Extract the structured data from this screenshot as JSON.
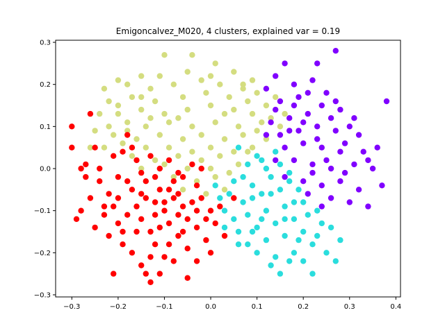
{
  "chart_data": {
    "type": "scatter",
    "title": "Emigoncalvez_M020, 4 clusters, explained var = 0.19",
    "xlabel": "",
    "ylabel": "",
    "xlim": [
      -0.335,
      0.41
    ],
    "ylim": [
      -0.305,
      0.305
    ],
    "x_ticks": [
      -0.3,
      -0.2,
      -0.1,
      0.0,
      0.1,
      0.2,
      0.3,
      0.4
    ],
    "x_tick_labels": [
      "−0.3",
      "−0.2",
      "−0.1",
      "0.0",
      "0.1",
      "0.2",
      "0.3",
      "0.4"
    ],
    "y_ticks": [
      -0.3,
      -0.2,
      -0.1,
      0.0,
      0.1,
      0.2,
      0.3
    ],
    "y_tick_labels": [
      "−0.3",
      "−0.2",
      "−0.1",
      "0.0",
      "0.1",
      "0.2",
      "0.3"
    ],
    "grid": false,
    "legend": "none",
    "series": [
      {
        "color": "#d4dd80",
        "points": [
          [
            -0.2,
            0.21
          ],
          [
            -0.15,
            0.22
          ],
          [
            -0.1,
            0.27
          ],
          [
            -0.04,
            0.27
          ],
          [
            0.01,
            0.25
          ],
          [
            0.05,
            0.23
          ],
          [
            -0.23,
            0.19
          ],
          [
            -0.18,
            0.2
          ],
          [
            -0.13,
            0.19
          ],
          [
            -0.08,
            0.2
          ],
          [
            -0.02,
            0.21
          ],
          [
            0.02,
            0.2
          ],
          [
            0.07,
            0.19
          ],
          [
            0.1,
            0.18
          ],
          [
            -0.22,
            0.16
          ],
          [
            -0.17,
            0.17
          ],
          [
            -0.12,
            0.16
          ],
          [
            -0.06,
            0.17
          ],
          [
            -0.01,
            0.18
          ],
          [
            0.04,
            0.17
          ],
          [
            0.08,
            0.16
          ],
          [
            0.12,
            0.15
          ],
          [
            -0.24,
            0.13
          ],
          [
            -0.2,
            0.13
          ],
          [
            -0.15,
            0.14
          ],
          [
            -0.1,
            0.13
          ],
          [
            -0.05,
            0.14
          ],
          [
            0.0,
            0.15
          ],
          [
            0.05,
            0.14
          ],
          [
            0.09,
            0.13
          ],
          [
            0.13,
            0.12
          ],
          [
            -0.22,
            0.1
          ],
          [
            -0.18,
            0.11
          ],
          [
            -0.14,
            0.1
          ],
          [
            -0.09,
            0.11
          ],
          [
            -0.04,
            0.1
          ],
          [
            0.01,
            0.11
          ],
          [
            0.06,
            0.1
          ],
          [
            0.1,
            0.09
          ],
          [
            0.15,
            0.1
          ],
          [
            -0.25,
            0.09
          ],
          [
            -0.21,
            0.08
          ],
          [
            -0.16,
            0.07
          ],
          [
            -0.11,
            0.08
          ],
          [
            -0.06,
            0.07
          ],
          [
            -0.02,
            0.08
          ],
          [
            0.03,
            0.07
          ],
          [
            0.07,
            0.08
          ],
          [
            0.12,
            0.07
          ],
          [
            -0.23,
            0.05
          ],
          [
            -0.19,
            0.06
          ],
          [
            -0.14,
            0.05
          ],
          [
            -0.09,
            0.05
          ],
          [
            -0.04,
            0.04
          ],
          [
            0.0,
            0.05
          ],
          [
            0.05,
            0.04
          ],
          [
            0.09,
            0.05
          ],
          [
            -0.17,
            0.03
          ],
          [
            -0.12,
            0.02
          ],
          [
            -0.07,
            0.03
          ],
          [
            -0.02,
            0.02
          ],
          [
            0.02,
            0.03
          ],
          [
            0.06,
            0.01
          ],
          [
            -0.15,
            0.0
          ],
          [
            -0.1,
            0.01
          ],
          [
            -0.05,
            0.0
          ],
          [
            0.0,
            0.0
          ],
          [
            0.04,
            -0.01
          ],
          [
            -0.08,
            -0.02
          ],
          [
            -0.03,
            -0.03
          ],
          [
            0.01,
            -0.02
          ],
          [
            -0.06,
            -0.05
          ],
          [
            -0.01,
            -0.06
          ],
          [
            0.03,
            -0.05
          ],
          [
            -0.18,
            0.09
          ],
          [
            -0.13,
            0.12
          ],
          [
            -0.07,
            0.12
          ],
          [
            0.03,
            0.13
          ],
          [
            0.11,
            0.11
          ],
          [
            -0.26,
            0.05
          ],
          [
            0.07,
            0.2
          ],
          [
            -0.05,
            0.23
          ],
          [
            0.0,
            0.22
          ],
          [
            0.09,
            0.21
          ],
          [
            -0.11,
            0.22
          ],
          [
            0.14,
            0.17
          ],
          [
            0.16,
            0.13
          ],
          [
            0.08,
            0.04
          ],
          [
            -0.15,
            0.17
          ],
          [
            -0.2,
            0.15
          ]
        ]
      },
      {
        "color": "#ff0000",
        "points": [
          [
            -0.3,
            0.1
          ],
          [
            -0.3,
            0.05
          ],
          [
            -0.26,
            0.13
          ],
          [
            -0.25,
            0.05
          ],
          [
            -0.28,
            0.0
          ],
          [
            -0.27,
            -0.02
          ],
          [
            -0.24,
            -0.03
          ],
          [
            -0.26,
            -0.07
          ],
          [
            -0.28,
            -0.1
          ],
          [
            -0.29,
            -0.12
          ],
          [
            -0.23,
            -0.11
          ],
          [
            -0.25,
            -0.14
          ],
          [
            -0.21,
            0.03
          ],
          [
            -0.18,
            0.08
          ],
          [
            -0.19,
            0.04
          ],
          [
            -0.2,
            -0.02
          ],
          [
            -0.22,
            -0.06
          ],
          [
            -0.21,
            -0.09
          ],
          [
            -0.2,
            -0.13
          ],
          [
            -0.22,
            -0.16
          ],
          [
            -0.19,
            -0.18
          ],
          [
            -0.17,
            -0.2
          ],
          [
            -0.15,
            -0.23
          ],
          [
            -0.14,
            -0.25
          ],
          [
            -0.13,
            -0.27
          ],
          [
            -0.11,
            -0.25
          ],
          [
            -0.16,
            0.02
          ],
          [
            -0.15,
            -0.01
          ],
          [
            -0.17,
            -0.05
          ],
          [
            -0.16,
            -0.09
          ],
          [
            -0.15,
            -0.12
          ],
          [
            -0.13,
            -0.15
          ],
          [
            -0.12,
            -0.18
          ],
          [
            -0.1,
            -0.21
          ],
          [
            -0.08,
            -0.22
          ],
          [
            -0.13,
            0.03
          ],
          [
            -0.12,
            -0.02
          ],
          [
            -0.11,
            -0.05
          ],
          [
            -0.12,
            -0.08
          ],
          [
            -0.1,
            -0.1
          ],
          [
            -0.09,
            -0.13
          ],
          [
            -0.07,
            -0.16
          ],
          [
            -0.05,
            -0.19
          ],
          [
            -0.03,
            -0.22
          ],
          [
            -0.05,
            -0.26
          ],
          [
            -0.09,
            0.02
          ],
          [
            -0.08,
            -0.03
          ],
          [
            -0.07,
            -0.06
          ],
          [
            -0.06,
            -0.09
          ],
          [
            -0.05,
            -0.12
          ],
          [
            -0.03,
            -0.14
          ],
          [
            -0.01,
            -0.17
          ],
          [
            0.0,
            -0.2
          ],
          [
            -0.04,
            0.01
          ],
          [
            -0.03,
            -0.04
          ],
          [
            -0.02,
            -0.07
          ],
          [
            0.0,
            -0.1
          ],
          [
            0.01,
            -0.13
          ],
          [
            0.03,
            -0.16
          ],
          [
            -0.18,
            -0.03
          ],
          [
            -0.14,
            -0.07
          ],
          [
            -0.1,
            -0.08
          ],
          [
            -0.06,
            -0.02
          ],
          [
            -0.02,
            0.0
          ],
          [
            0.05,
            -0.07
          ],
          [
            -0.2,
            -0.07
          ],
          [
            -0.16,
            -0.15
          ],
          [
            -0.11,
            -0.14
          ],
          [
            -0.07,
            -0.11
          ],
          [
            -0.04,
            -0.08
          ],
          [
            -0.24,
            0.0
          ],
          [
            -0.18,
            -0.11
          ],
          [
            -0.12,
            -0.11
          ],
          [
            -0.08,
            -0.07
          ],
          [
            -0.14,
            -0.03
          ],
          [
            -0.09,
            -0.05
          ],
          [
            -0.21,
            -0.25
          ],
          [
            -0.13,
            -0.21
          ],
          [
            -0.06,
            -0.15
          ],
          [
            -0.01,
            -0.12
          ],
          [
            -0.23,
            -0.09
          ],
          [
            -0.17,
            0.05
          ],
          [
            -0.11,
            0.0
          ],
          [
            0.02,
            -0.09
          ],
          [
            -0.19,
            -0.15
          ],
          [
            -0.09,
            -0.18
          ],
          [
            -0.03,
            -0.1
          ],
          [
            -0.15,
            -0.06
          ],
          [
            -0.07,
            -0.01
          ],
          [
            -0.27,
            0.01
          ]
        ]
      },
      {
        "color": "#2adddd",
        "points": [
          [
            0.06,
            0.05
          ],
          [
            0.1,
            0.03
          ],
          [
            0.14,
            0.04
          ],
          [
            0.12,
            0.0
          ],
          [
            0.08,
            0.01
          ],
          [
            0.05,
            -0.03
          ],
          [
            0.09,
            -0.04
          ],
          [
            0.13,
            -0.02
          ],
          [
            0.17,
            -0.01
          ],
          [
            0.15,
            -0.05
          ],
          [
            0.11,
            -0.06
          ],
          [
            0.07,
            -0.08
          ],
          [
            0.03,
            -0.1
          ],
          [
            0.08,
            -0.11
          ],
          [
            0.12,
            -0.1
          ],
          [
            0.16,
            -0.09
          ],
          [
            0.2,
            -0.08
          ],
          [
            0.18,
            -0.12
          ],
          [
            0.14,
            -0.13
          ],
          [
            0.1,
            -0.14
          ],
          [
            0.06,
            -0.15
          ],
          [
            0.03,
            -0.14
          ],
          [
            0.08,
            -0.18
          ],
          [
            0.12,
            -0.17
          ],
          [
            0.16,
            -0.16
          ],
          [
            0.2,
            -0.15
          ],
          [
            0.24,
            -0.13
          ],
          [
            0.22,
            -0.18
          ],
          [
            0.18,
            -0.2
          ],
          [
            0.14,
            -0.21
          ],
          [
            0.1,
            -0.2
          ],
          [
            0.13,
            -0.23
          ],
          [
            0.17,
            -0.22
          ],
          [
            0.2,
            -0.22
          ],
          [
            0.25,
            -0.2
          ],
          [
            0.28,
            -0.17
          ],
          [
            0.27,
            -0.22
          ],
          [
            0.22,
            -0.25
          ],
          [
            0.15,
            -0.25
          ],
          [
            0.04,
            -0.06
          ],
          [
            0.01,
            -0.04
          ],
          [
            0.19,
            -0.05
          ],
          [
            0.23,
            -0.1
          ],
          [
            0.26,
            -0.14
          ],
          [
            0.09,
            -0.07
          ],
          [
            0.13,
            -0.06
          ],
          [
            0.17,
            -0.03
          ],
          [
            0.21,
            -0.11
          ],
          [
            0.07,
            -0.02
          ],
          [
            0.11,
            0.02
          ],
          [
            0.15,
            0.01
          ],
          [
            0.05,
            -0.12
          ],
          [
            0.09,
            -0.15
          ],
          [
            0.19,
            -0.17
          ],
          [
            0.23,
            -0.16
          ],
          [
            0.02,
            -0.07
          ],
          [
            0.06,
            -0.18
          ],
          [
            0.11,
            -0.12
          ],
          [
            0.16,
            -0.12
          ],
          [
            0.18,
            -0.08
          ]
        ]
      },
      {
        "color": "#8000ff",
        "points": [
          [
            0.27,
            0.28
          ],
          [
            0.23,
            0.25
          ],
          [
            0.16,
            0.25
          ],
          [
            0.14,
            0.22
          ],
          [
            0.18,
            0.2
          ],
          [
            0.22,
            0.21
          ],
          [
            0.25,
            0.18
          ],
          [
            0.12,
            0.19
          ],
          [
            0.15,
            0.16
          ],
          [
            0.19,
            0.17
          ],
          [
            0.24,
            0.15
          ],
          [
            0.28,
            0.14
          ],
          [
            0.38,
            0.16
          ],
          [
            0.31,
            0.12
          ],
          [
            0.26,
            0.12
          ],
          [
            0.21,
            0.13
          ],
          [
            0.17,
            0.12
          ],
          [
            0.13,
            0.11
          ],
          [
            0.15,
            0.08
          ],
          [
            0.19,
            0.09
          ],
          [
            0.23,
            0.1
          ],
          [
            0.27,
            0.09
          ],
          [
            0.32,
            0.08
          ],
          [
            0.16,
            0.05
          ],
          [
            0.2,
            0.06
          ],
          [
            0.24,
            0.05
          ],
          [
            0.28,
            0.04
          ],
          [
            0.33,
            0.04
          ],
          [
            0.14,
            0.02
          ],
          [
            0.18,
            0.02
          ],
          [
            0.22,
            0.01
          ],
          [
            0.26,
            0.0
          ],
          [
            0.31,
            0.01
          ],
          [
            0.35,
            0.0
          ],
          [
            0.16,
            -0.02
          ],
          [
            0.2,
            -0.03
          ],
          [
            0.24,
            -0.04
          ],
          [
            0.28,
            -0.03
          ],
          [
            0.32,
            -0.05
          ],
          [
            0.37,
            -0.04
          ],
          [
            0.21,
            -0.06
          ],
          [
            0.26,
            -0.07
          ],
          [
            0.3,
            -0.08
          ],
          [
            0.34,
            -0.09
          ],
          [
            0.24,
            -0.09
          ],
          [
            0.18,
            0.15
          ],
          [
            0.21,
            0.18
          ],
          [
            0.29,
            0.06
          ],
          [
            0.25,
            0.02
          ],
          [
            0.34,
            0.02
          ],
          [
            0.17,
            0.09
          ],
          [
            0.23,
            0.07
          ],
          [
            0.27,
            0.16
          ],
          [
            0.2,
            0.11
          ],
          [
            0.14,
            0.14
          ],
          [
            0.12,
            0.08
          ],
          [
            0.3,
            0.1
          ],
          [
            0.22,
            -0.01
          ],
          [
            0.36,
            0.05
          ],
          [
            0.29,
            -0.01
          ]
        ]
      }
    ]
  }
}
